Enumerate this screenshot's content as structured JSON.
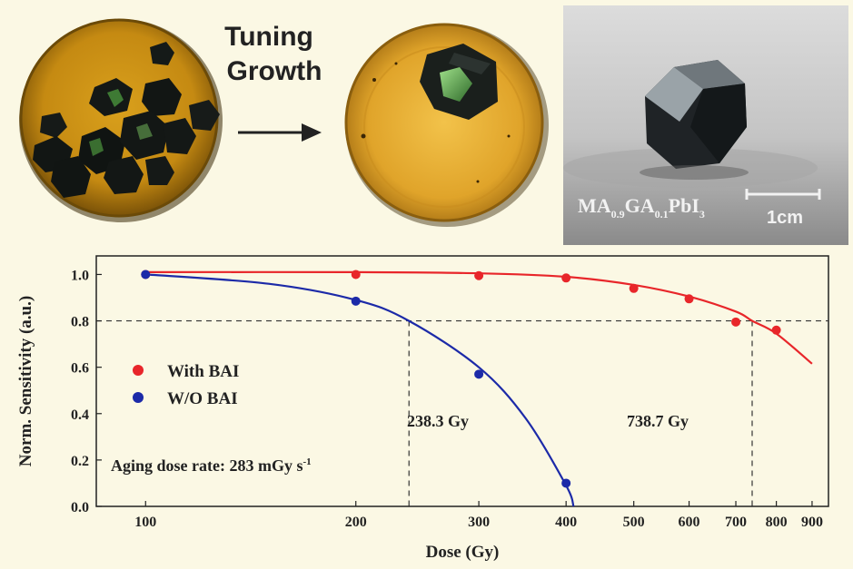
{
  "header": {
    "title_line1": "Tuning",
    "title_line2": "Growth"
  },
  "photo": {
    "formula_base1": "MA",
    "formula_sub1": "0.9",
    "formula_base2": "GA",
    "formula_sub2": "0.1",
    "formula_base3": "PbI",
    "formula_sub3": "3",
    "scale_label": "1cm"
  },
  "chart_data": {
    "type": "scatter",
    "title": "",
    "xlabel": "Dose (Gy)",
    "ylabel": "Norm. Sensitivity (a.u.)",
    "xscale": "log",
    "xlim": [
      85,
      950
    ],
    "ylim": [
      0.0,
      1.08
    ],
    "x_ticks": [
      100,
      200,
      300,
      400,
      500,
      600,
      700,
      800,
      900
    ],
    "x_tick_labels": [
      "100",
      "200",
      "300",
      "400",
      "500",
      "600",
      "700",
      "800",
      "900"
    ],
    "y_ticks": [
      0.0,
      0.2,
      0.4,
      0.6,
      0.8,
      1.0
    ],
    "y_tick_labels": [
      "0.0",
      "0.2",
      "0.4",
      "0.6",
      "0.8",
      "1.0"
    ],
    "threshold_y": 0.8,
    "series": [
      {
        "name": "With BAI",
        "color": "#e8262a",
        "points": [
          [
            100,
            1.0
          ],
          [
            200,
            1.0
          ],
          [
            300,
            0.995
          ],
          [
            400,
            0.985
          ],
          [
            500,
            0.94
          ],
          [
            600,
            0.895
          ],
          [
            700,
            0.795
          ],
          [
            800,
            0.76
          ]
        ],
        "fit": [
          [
            100,
            1.01
          ],
          [
            200,
            1.01
          ],
          [
            300,
            1.005
          ],
          [
            400,
            0.99
          ],
          [
            500,
            0.955
          ],
          [
            600,
            0.905
          ],
          [
            700,
            0.84
          ],
          [
            738.7,
            0.8
          ],
          [
            800,
            0.745
          ],
          [
            900,
            0.615
          ]
        ]
      },
      {
        "name": "W/O BAI",
        "color": "#1c2aa8",
        "points": [
          [
            100,
            1.0
          ],
          [
            200,
            0.885
          ],
          [
            300,
            0.57
          ],
          [
            400,
            0.1
          ]
        ],
        "fit": [
          [
            100,
            1.0
          ],
          [
            150,
            0.96
          ],
          [
            200,
            0.89
          ],
          [
            238.3,
            0.8
          ],
          [
            300,
            0.6
          ],
          [
            350,
            0.38
          ],
          [
            400,
            0.09
          ],
          [
            410,
            0.0
          ]
        ]
      }
    ],
    "annotations": [
      {
        "text": "238.3 Gy",
        "x": 238.3
      },
      {
        "text": "738.7 Gy",
        "x": 738.7
      },
      {
        "text_base": "Aging dose rate: 283 mGy s",
        "text_sup": "-1"
      }
    ],
    "legend": "left-center"
  }
}
